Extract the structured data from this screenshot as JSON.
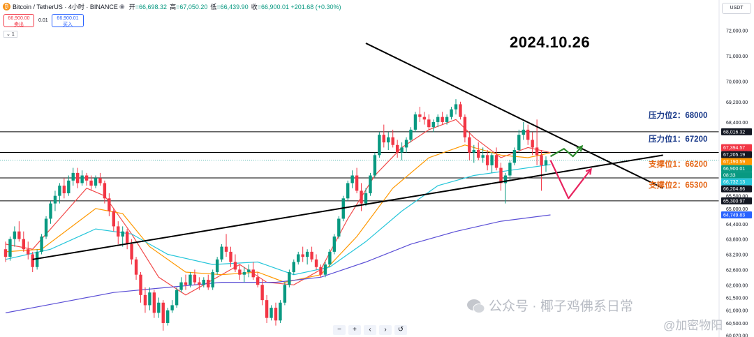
{
  "header": {
    "symbol_icon": "bitcoin-icon",
    "symbol": "Bitcoin / TetherUS · 4小时 · BINANCE",
    "ohlc": [
      {
        "label": "开",
        "value": "=66,698.32"
      },
      {
        "label": "高",
        "value": "=67,050.20"
      },
      {
        "label": "低",
        "value": "=66,439.90"
      },
      {
        "label": "收",
        "value": "=66,900.01 +201.68 (+0.30%)"
      }
    ]
  },
  "trade": {
    "sell_price": "66,900.00",
    "sell_label": "卖出",
    "spread": "0.01",
    "buy_price": "66,900.01",
    "buy_label": "买入",
    "volume": "1"
  },
  "currency": "USDT",
  "annotation_date": "2024.10.26",
  "levels": {
    "res2": "压力位2：68000",
    "res1": "压力位1：67200",
    "sup1": "支撑位1：66200",
    "sup2": "支撑位2：65300"
  },
  "zoom_controls": [
    "−",
    "+",
    "‹",
    "›",
    "↺"
  ],
  "watermark": {
    "text": "公众号 · 椰子鸡佛系日常",
    "sub": "@加密物阳"
  },
  "chart_data": {
    "type": "candlestick",
    "y_axis_ticks": [
      72000,
      71000,
      70000,
      69200,
      68400,
      67200,
      66600,
      65500,
      65000,
      64400,
      63800,
      63200,
      62600,
      62000,
      61500,
      61000,
      60500,
      60020
    ],
    "y_axis_tick_labels": [
      "72,000.00",
      "71,000.00",
      "70,000.00",
      "69,200.00",
      "68,400.00",
      "67,200.00",
      "66,600.00",
      "65,500.00",
      "65,000.00",
      "64,400.00",
      "63,800.00",
      "63,200.00",
      "62,600.00",
      "62,000.00",
      "61,500.00",
      "61,000.00",
      "60,500.00",
      "60,020.00"
    ],
    "ylim": [
      59950,
      72650
    ],
    "horizontal_levels": [
      68016.32,
      67205.19,
      66204.86,
      65300.97
    ],
    "price_tags": [
      {
        "value": 68016.32,
        "label": "68,016.32",
        "color": "#131722"
      },
      {
        "value": 67394.57,
        "label": "67,394.57",
        "color": "#f23645"
      },
      {
        "value": 67205.19,
        "label": "67,205.19",
        "color": "#131722"
      },
      {
        "value": 67190.59,
        "label": "67,190.59",
        "color": "#ff9800"
      },
      {
        "value": 66900.01,
        "label": "66,900.01",
        "color": "#089981"
      },
      {
        "value": 66732.13,
        "label": "66,732.13",
        "color": "#26c6da"
      },
      {
        "value": 66204.86,
        "label": "66,204.86",
        "color": "#131722"
      },
      {
        "value": 65300.97,
        "label": "65,300.97",
        "color": "#131722"
      },
      {
        "value": 64749.83,
        "label": "64,749.83",
        "color": "#2962ff"
      }
    ],
    "countdown": "08:33",
    "candles": [
      [
        63400,
        63700,
        62900,
        63100
      ],
      [
        63100,
        63900,
        62950,
        63800
      ],
      [
        63800,
        64300,
        63500,
        64100
      ],
      [
        64100,
        64500,
        63700,
        63800
      ],
      [
        63800,
        64100,
        63300,
        63400
      ],
      [
        63400,
        63700,
        63000,
        63200
      ],
      [
        63200,
        63300,
        62500,
        62700
      ],
      [
        62700,
        63400,
        62600,
        63300
      ],
      [
        63300,
        64000,
        63200,
        63900
      ],
      [
        63900,
        64700,
        63800,
        64600
      ],
      [
        64600,
        65300,
        64400,
        65200
      ],
      [
        65200,
        65700,
        64900,
        65500
      ],
      [
        65500,
        66000,
        65200,
        65900
      ],
      [
        65900,
        66200,
        65400,
        65600
      ],
      [
        65600,
        66300,
        65500,
        66100
      ],
      [
        66100,
        66600,
        65900,
        66400
      ],
      [
        66400,
        66600,
        65800,
        66000
      ],
      [
        66000,
        66500,
        65900,
        66300
      ],
      [
        66300,
        66400,
        65900,
        66100
      ],
      [
        66100,
        66300,
        65700,
        65900
      ],
      [
        65900,
        66300,
        65800,
        66200
      ],
      [
        66200,
        66400,
        65900,
        66000
      ],
      [
        66000,
        66100,
        65200,
        65400
      ],
      [
        65400,
        65600,
        64700,
        64900
      ],
      [
        64900,
        65000,
        64100,
        64300
      ],
      [
        64300,
        64500,
        63600,
        63900
      ],
      [
        63900,
        64300,
        63500,
        64100
      ],
      [
        64100,
        64200,
        63400,
        63600
      ],
      [
        63600,
        63800,
        62800,
        63000
      ],
      [
        63000,
        63100,
        62200,
        62400
      ],
      [
        62400,
        62500,
        61300,
        61600
      ],
      [
        61600,
        61900,
        60900,
        61200
      ],
      [
        61200,
        61900,
        61000,
        61700
      ],
      [
        61700,
        61800,
        60700,
        60900
      ],
      [
        60900,
        61500,
        60700,
        61300
      ],
      [
        61300,
        61400,
        60200,
        60500
      ],
      [
        60500,
        61100,
        60400,
        61000
      ],
      [
        61000,
        61400,
        60900,
        61200
      ],
      [
        61200,
        61900,
        61100,
        61800
      ],
      [
        61800,
        62300,
        61700,
        62100
      ],
      [
        62100,
        62400,
        61800,
        62000
      ],
      [
        62000,
        62500,
        61900,
        62400
      ],
      [
        62400,
        62600,
        62000,
        62100
      ],
      [
        62100,
        62300,
        61800,
        62000
      ],
      [
        62000,
        62300,
        61900,
        62200
      ],
      [
        62200,
        62400,
        61800,
        61900
      ],
      [
        61900,
        62600,
        61800,
        62500
      ],
      [
        62500,
        63100,
        62400,
        63000
      ],
      [
        63000,
        63600,
        62900,
        63500
      ],
      [
        63500,
        64000,
        63100,
        63300
      ],
      [
        63300,
        63500,
        62700,
        62900
      ],
      [
        62900,
        63200,
        62500,
        62600
      ],
      [
        62600,
        62800,
        62200,
        62400
      ],
      [
        62400,
        62700,
        62100,
        62500
      ],
      [
        62500,
        62800,
        62300,
        62600
      ],
      [
        62600,
        62900,
        62200,
        62300
      ],
      [
        62300,
        62500,
        61900,
        62000
      ],
      [
        62000,
        62200,
        61200,
        61400
      ],
      [
        61400,
        61600,
        60500,
        60700
      ],
      [
        60700,
        61200,
        60600,
        61100
      ],
      [
        61100,
        61300,
        60400,
        60600
      ],
      [
        60600,
        61400,
        60500,
        61300
      ],
      [
        61300,
        62100,
        61200,
        62000
      ],
      [
        62000,
        62600,
        61900,
        62500
      ],
      [
        62500,
        63000,
        62400,
        62900
      ],
      [
        62900,
        63300,
        62800,
        63200
      ],
      [
        63200,
        63500,
        62900,
        63100
      ],
      [
        63100,
        63400,
        62800,
        63300
      ],
      [
        63300,
        63500,
        62900,
        63000
      ],
      [
        63000,
        63200,
        62600,
        62700
      ],
      [
        62700,
        62800,
        62300,
        62400
      ],
      [
        62400,
        62900,
        62300,
        62800
      ],
      [
        62800,
        63400,
        62700,
        63300
      ],
      [
        63300,
        64000,
        63200,
        63900
      ],
      [
        63900,
        64700,
        63800,
        64600
      ],
      [
        64600,
        65500,
        64500,
        65400
      ],
      [
        65400,
        66100,
        65300,
        66000
      ],
      [
        66000,
        66500,
        65800,
        66300
      ],
      [
        66300,
        66600,
        65600,
        65700
      ],
      [
        65700,
        66000,
        64900,
        65200
      ],
      [
        65200,
        65800,
        65100,
        65600
      ],
      [
        65600,
        66400,
        65500,
        66300
      ],
      [
        66300,
        67200,
        66200,
        67100
      ],
      [
        67100,
        68000,
        67000,
        67900
      ],
      [
        67900,
        68300,
        67400,
        67600
      ],
      [
        67600,
        68000,
        67300,
        67800
      ],
      [
        67800,
        68100,
        67400,
        67500
      ],
      [
        67500,
        67700,
        67000,
        67200
      ],
      [
        67200,
        67600,
        66900,
        67400
      ],
      [
        67400,
        67800,
        67200,
        67700
      ],
      [
        67700,
        68200,
        67600,
        68100
      ],
      [
        68100,
        68800,
        68000,
        68700
      ],
      [
        68700,
        69000,
        68400,
        68600
      ],
      [
        68600,
        68800,
        68300,
        68500
      ],
      [
        68500,
        68700,
        68100,
        68200
      ],
      [
        68200,
        68500,
        68000,
        68400
      ],
      [
        68400,
        68700,
        68200,
        68600
      ],
      [
        68600,
        68800,
        68300,
        68400
      ],
      [
        68400,
        68700,
        68300,
        68600
      ],
      [
        68600,
        69000,
        68500,
        68900
      ],
      [
        68900,
        69300,
        68700,
        69100
      ],
      [
        69100,
        69200,
        68500,
        68600
      ],
      [
        68600,
        68700,
        67600,
        67800
      ],
      [
        67800,
        68000,
        66900,
        67200
      ],
      [
        67200,
        67500,
        66800,
        67300
      ],
      [
        67300,
        67600,
        66900,
        67000
      ],
      [
        67000,
        67400,
        66800,
        67100
      ],
      [
        67100,
        67300,
        66500,
        66700
      ],
      [
        66700,
        67200,
        66400,
        67100
      ],
      [
        67100,
        67400,
        66500,
        66600
      ],
      [
        66600,
        66800,
        65700,
        66000
      ],
      [
        66000,
        66400,
        65200,
        66300
      ],
      [
        66300,
        66900,
        66100,
        66800
      ],
      [
        66800,
        67400,
        66700,
        67300
      ],
      [
        67300,
        68100,
        67200,
        67900
      ],
      [
        67900,
        68400,
        67700,
        68100
      ],
      [
        68100,
        68300,
        67500,
        67700
      ],
      [
        67700,
        68000,
        67100,
        67400
      ],
      [
        67400,
        68500,
        66700,
        67100
      ],
      [
        67100,
        67300,
        65700,
        66700
      ],
      [
        66700,
        67050,
        66440,
        66900
      ]
    ],
    "moving_averages": [
      {
        "color": "#f24a4a",
        "values": [
          [
            0,
            63600
          ],
          [
            6,
            63400
          ],
          [
            12,
            64600
          ],
          [
            18,
            65800
          ],
          [
            22,
            65500
          ],
          [
            28,
            64000
          ],
          [
            34,
            62300
          ],
          [
            40,
            61600
          ],
          [
            46,
            62200
          ],
          [
            52,
            62800
          ],
          [
            58,
            62100
          ],
          [
            64,
            62000
          ],
          [
            70,
            62600
          ],
          [
            76,
            64600
          ],
          [
            82,
            66300
          ],
          [
            88,
            67400
          ],
          [
            94,
            68100
          ],
          [
            100,
            68500
          ],
          [
            104,
            67800
          ],
          [
            110,
            67000
          ],
          [
            116,
            67400
          ],
          [
            121,
            67200
          ]
        ]
      },
      {
        "color": "#ff9800",
        "values": [
          [
            0,
            63300
          ],
          [
            8,
            63400
          ],
          [
            14,
            64200
          ],
          [
            20,
            65000
          ],
          [
            26,
            64800
          ],
          [
            32,
            63500
          ],
          [
            40,
            62500
          ],
          [
            48,
            62400
          ],
          [
            56,
            62500
          ],
          [
            62,
            62100
          ],
          [
            70,
            62400
          ],
          [
            78,
            63900
          ],
          [
            86,
            65800
          ],
          [
            94,
            67000
          ],
          [
            102,
            67500
          ],
          [
            110,
            67100
          ],
          [
            116,
            67000
          ],
          [
            121,
            67190
          ]
        ]
      },
      {
        "color": "#26c6da",
        "values": [
          [
            0,
            63000
          ],
          [
            10,
            63400
          ],
          [
            20,
            64200
          ],
          [
            28,
            64000
          ],
          [
            36,
            63200
          ],
          [
            46,
            62800
          ],
          [
            56,
            62900
          ],
          [
            64,
            62400
          ],
          [
            72,
            62700
          ],
          [
            80,
            63700
          ],
          [
            88,
            64900
          ],
          [
            96,
            65900
          ],
          [
            104,
            66300
          ],
          [
            112,
            66500
          ],
          [
            121,
            66732
          ]
        ]
      },
      {
        "color": "#5b4fd6",
        "values": [
          [
            0,
            60900
          ],
          [
            12,
            61300
          ],
          [
            24,
            61700
          ],
          [
            36,
            61900
          ],
          [
            48,
            62100
          ],
          [
            60,
            62100
          ],
          [
            70,
            62300
          ],
          [
            80,
            62900
          ],
          [
            90,
            63600
          ],
          [
            100,
            64100
          ],
          [
            110,
            64500
          ],
          [
            121,
            64750
          ]
        ]
      }
    ],
    "trend_lines": [
      {
        "from": [
          6,
          63000
        ],
        "to": [
          146,
          67100
        ]
      },
      {
        "from": [
          80,
          71500
        ],
        "to": [
          146,
          65800
        ]
      }
    ],
    "scenario_paths": [
      {
        "color": "#2e8b2e",
        "points": [
          [
            121,
            67050
          ],
          [
            124,
            67350
          ],
          [
            126,
            67050
          ],
          [
            128,
            67450
          ]
        ]
      },
      {
        "color": "#e8245f",
        "points": [
          [
            121,
            66900
          ],
          [
            125,
            65400
          ],
          [
            130,
            66550
          ]
        ]
      }
    ]
  }
}
